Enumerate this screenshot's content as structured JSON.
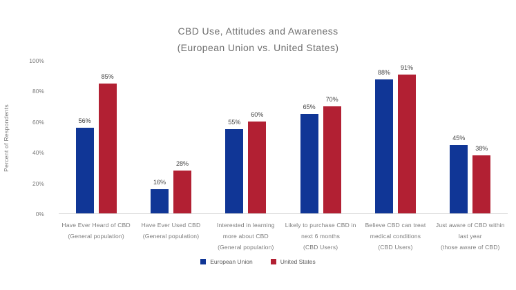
{
  "title_line1": "CBD Use, Attitudes and Awareness",
  "title_line2": "(European Union vs. United States)",
  "chart_data": {
    "type": "bar",
    "title": "CBD Use, Attitudes and Awareness (European Union vs. United States)",
    "ylabel": "Percent of Respondents",
    "xlabel": "",
    "ylim": [
      0,
      100
    ],
    "y_ticks": [
      0,
      20,
      40,
      60,
      80,
      100
    ],
    "y_tick_suffix": "%",
    "grid": false,
    "legend_position": "bottom",
    "categories": [
      "Have Ever Heard of CBD (General population)",
      "Have Ever Used CBD (General population)",
      "Interested in learning more about CBD (General population)",
      "Likely to purchase CBD in next 6 months (CBD Users)",
      "Believe CBD can treat medical conditions (CBD Users)",
      "Just aware of CBD within last year (those aware of CBD)"
    ],
    "category_label_lines": [
      [
        "Have Ever Heard of CBD",
        "(General population)"
      ],
      [
        "Have Ever Used CBD",
        "(General population)"
      ],
      [
        "Interested in learning",
        "more about CBD",
        "(General population)"
      ],
      [
        "Likely to purchase CBD in",
        "next 6 months",
        "(CBD Users)"
      ],
      [
        "Believe CBD can treat",
        "medical conditions",
        "(CBD Users)"
      ],
      [
        "Just aware of CBD within",
        "last year",
        "(those aware of CBD)"
      ]
    ],
    "series": [
      {
        "name": "European Union",
        "color": "#103696",
        "values": [
          56,
          16,
          55,
          65,
          88,
          45
        ]
      },
      {
        "name": "United States",
        "color": "#B22033",
        "values": [
          85,
          28,
          60,
          70,
          91,
          38
        ]
      }
    ],
    "data_label_suffix": "%"
  }
}
